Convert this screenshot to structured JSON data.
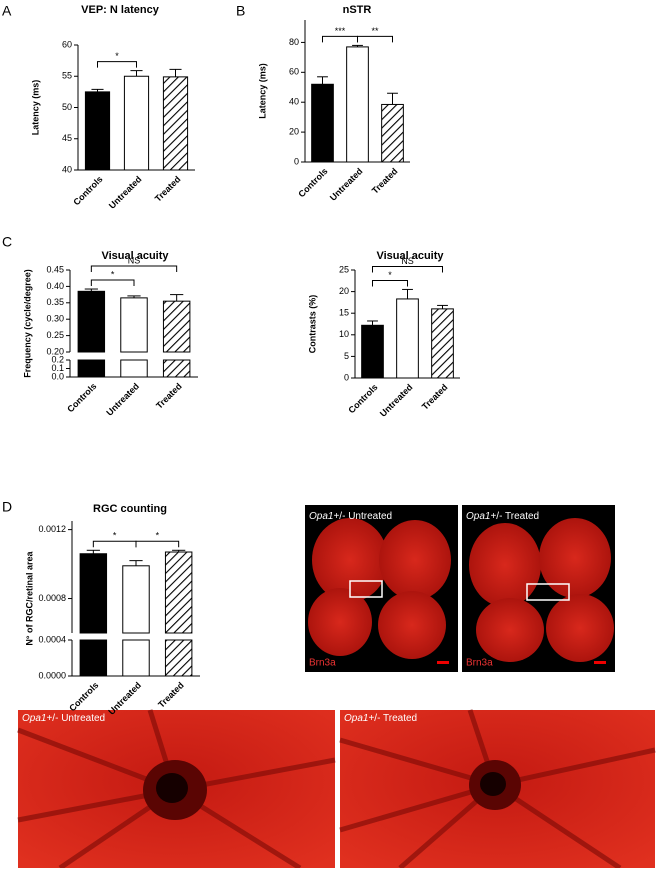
{
  "panel_labels": [
    "A",
    "B",
    "C",
    "D"
  ],
  "chart_data": [
    {
      "type": "bar",
      "title": "VEP: N latency",
      "ylabel": "Latency (ms)",
      "categories": [
        "Controls",
        "Untreated",
        "Treated"
      ],
      "patterns": [
        "solid",
        "empty",
        "hatched"
      ],
      "values": [
        52.5,
        55,
        54.9
      ],
      "errors": [
        0.4,
        0.9,
        1.2
      ],
      "ylim": [
        40,
        60
      ],
      "yticks": [
        40,
        45,
        50,
        55,
        60
      ],
      "annotations": [
        {
          "text": "*",
          "from": 0,
          "to": 1
        }
      ]
    },
    {
      "type": "bar",
      "title": "nSTR",
      "ylabel": "Latency (ms)",
      "categories": [
        "Controls",
        "Untreated",
        "Treated"
      ],
      "patterns": [
        "solid",
        "empty",
        "hatched"
      ],
      "values": [
        52,
        77,
        38.5
      ],
      "errors": [
        5,
        1,
        7.5
      ],
      "ylim": [
        0,
        95
      ],
      "yticks": [
        0,
        20,
        40,
        60,
        80
      ],
      "annotations": [
        {
          "text": "***",
          "from": 0,
          "to": 1
        },
        {
          "text": "**",
          "from": 1,
          "to": 2
        }
      ]
    },
    {
      "type": "bar",
      "title": "Visual acuity",
      "ylabel": "Frequency (cycle/degree)",
      "categories": [
        "Controls",
        "Untreated",
        "Treated"
      ],
      "patterns": [
        "solid",
        "empty",
        "hatched"
      ],
      "values": [
        0.385,
        0.365,
        0.355
      ],
      "errors": [
        0.007,
        0.006,
        0.02
      ],
      "ylim": [
        0.2,
        0.45
      ],
      "yticks": [
        {
          "value": 0.2,
          "label": "0.20"
        },
        0.25,
        {
          "value": 0.3,
          "label": "0.30"
        },
        0.35,
        {
          "value": 0.4,
          "label": "0.40"
        },
        0.45
      ],
      "ylim_break": [
        0,
        0.2
      ],
      "yticks_break": [
        {
          "value": 0,
          "label": "0.0"
        },
        0.1,
        0.2
      ],
      "annotations": [
        {
          "text": "*",
          "from": 0,
          "to": 1
        },
        {
          "text": "NS",
          "from": 0,
          "to": 2
        }
      ]
    },
    {
      "type": "bar",
      "title": "Visual acuity",
      "ylabel": "Contrasts (%)",
      "categories": [
        "Controls",
        "Untreated",
        "Treated"
      ],
      "patterns": [
        "solid",
        "empty",
        "hatched"
      ],
      "values": [
        12.2,
        18.3,
        16
      ],
      "errors": [
        1,
        2.2,
        0.8
      ],
      "ylim": [
        0,
        25
      ],
      "yticks": [
        0,
        5,
        10,
        15,
        20,
        25
      ],
      "annotations": [
        {
          "text": "*",
          "from": 0,
          "to": 1
        },
        {
          "text": "NS",
          "from": 0,
          "to": 2
        }
      ]
    },
    {
      "type": "bar",
      "title": "RGC counting",
      "ylabel": "N° of RGC/retinal area",
      "categories": [
        "Controls",
        "Untreated",
        "Treated"
      ],
      "patterns": [
        "solid",
        "empty",
        "hatched"
      ],
      "values": [
        0.00106,
        0.00099,
        0.00107
      ],
      "errors": [
        2e-05,
        3e-05,
        1e-05
      ],
      "ylim": [
        0.0006,
        0.00125
      ],
      "yticks": [
        {
          "value": 0.0008,
          "label": "0.0008"
        },
        {
          "value": 0.0012,
          "label": "0.0012"
        }
      ],
      "ylim_break": [
        0,
        0.0004
      ],
      "yticks_break": [
        {
          "value": 0,
          "label": "0.0000"
        },
        {
          "value": 0.0004,
          "label": "0.0004"
        }
      ],
      "annotations": [
        {
          "text": "*",
          "from": 0,
          "to": 1
        },
        {
          "text": "*",
          "from": 1,
          "to": 2
        }
      ]
    }
  ],
  "images": [
    {
      "gene": "Opa1",
      "label": "+/- Untreated",
      "stain": "Brn3a"
    },
    {
      "gene": "Opa1",
      "label": "+/- Treated",
      "stain": "Brn3a"
    },
    {
      "gene": "Opa1",
      "label": "+/- Untreated"
    },
    {
      "gene": "Opa1",
      "label": "+/- Treated"
    }
  ]
}
